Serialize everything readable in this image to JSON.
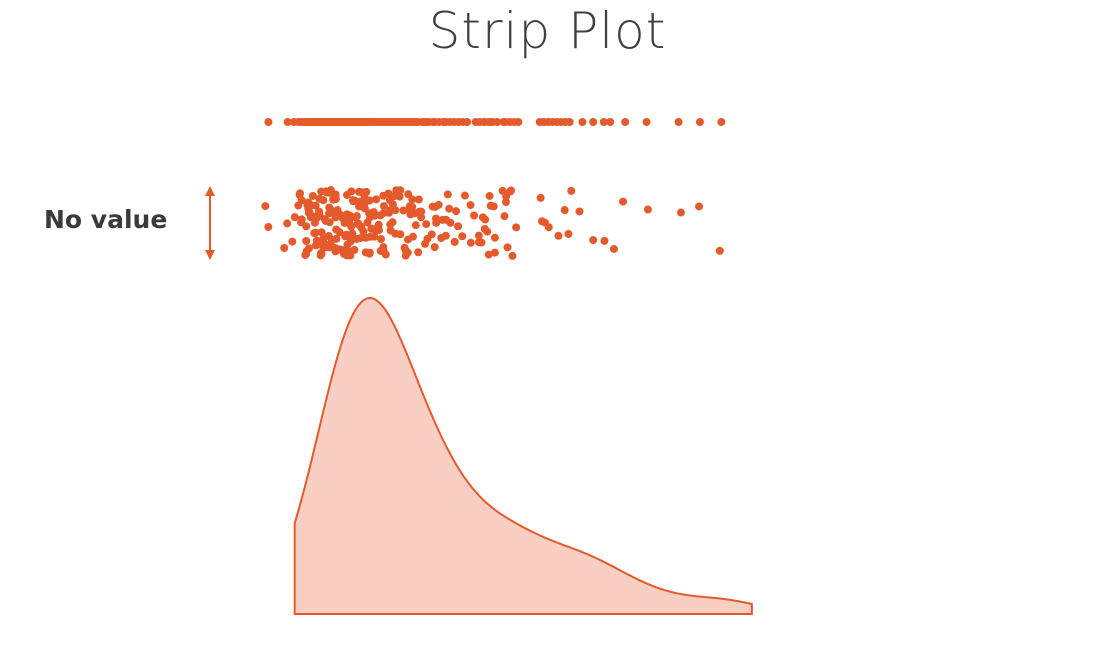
{
  "title": "Strip Plot",
  "annotation": {
    "label": "No value"
  },
  "colors": {
    "accent": "#e55a2c",
    "fill": "#f9cfc3",
    "title_text": "#404040",
    "label_text": "#3a3a3a"
  },
  "chart_data": {
    "type": "scatter",
    "points": [
      0.3,
      1.2,
      1.5,
      1.7,
      1.8,
      1.9,
      2.0,
      2.1,
      2.15,
      2.2,
      2.25,
      2.3,
      2.35,
      2.4,
      2.45,
      2.5,
      2.55,
      2.6,
      2.65,
      2.7,
      2.75,
      2.8,
      2.85,
      2.9,
      2.95,
      3.0,
      3.05,
      3.1,
      3.15,
      3.2,
      3.25,
      3.3,
      3.35,
      3.4,
      3.45,
      3.5,
      3.55,
      3.6,
      3.65,
      3.7,
      3.75,
      3.8,
      3.85,
      3.9,
      3.95,
      4.0,
      4.05,
      4.1,
      4.15,
      4.2,
      4.25,
      4.3,
      4.35,
      4.4,
      4.45,
      4.5,
      4.55,
      4.6,
      4.65,
      4.7,
      4.75,
      4.8,
      4.85,
      4.9,
      4.95,
      5.0,
      5.1,
      5.15,
      5.2,
      5.3,
      5.4,
      5.45,
      5.5,
      5.6,
      5.7,
      5.8,
      5.85,
      5.9,
      6.0,
      6.1,
      6.2,
      6.3,
      6.4,
      6.5,
      6.6,
      6.7,
      6.8,
      6.9,
      7.0,
      7.1,
      7.2,
      7.3,
      7.5,
      7.6,
      7.7,
      7.8,
      8.0,
      8.1,
      8.3,
      8.5,
      8.6,
      8.8,
      9.0,
      9.2,
      9.4,
      9.6,
      10.0,
      10.2,
      10.4,
      10.6,
      10.7,
      10.8,
      11.0,
      11.3,
      11.4,
      11.6,
      11.8,
      12.0,
      13.0,
      13.2,
      13.4,
      13.6,
      13.8,
      14.0,
      14.2,
      14.4,
      15.0,
      15.5,
      16.0,
      16.3,
      17.0,
      18.0,
      19.5,
      20.5,
      21.5
    ],
    "xlim": [
      0,
      22
    ]
  }
}
